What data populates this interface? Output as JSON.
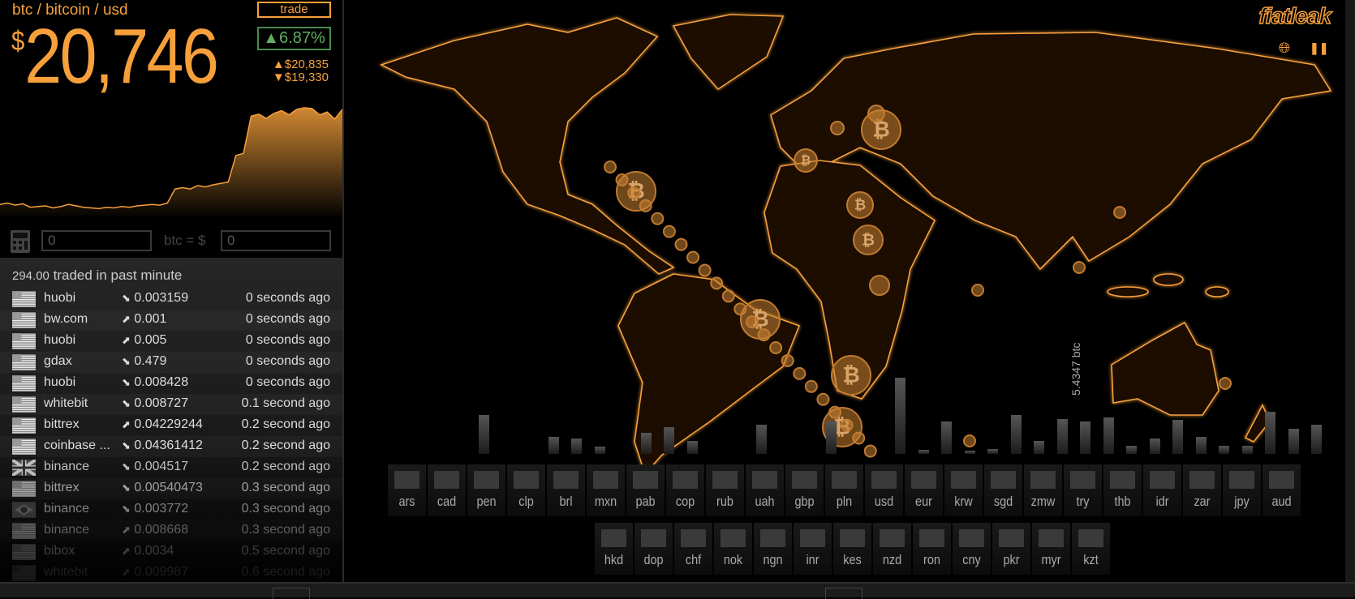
{
  "header": {
    "pair": "btc / bitcoin / usd",
    "currency_symbol": "$",
    "price": "20,746",
    "trade_label": "trade",
    "change": "▲6.87%",
    "high": "▲$20,835",
    "low": "▼$19,330"
  },
  "colors": {
    "accent": "#f6a03c",
    "up": "#5fae62",
    "land": "#1a0f04"
  },
  "price_history": {
    "type": "area",
    "ylim": [
      19330,
      20835
    ],
    "values": [
      19420,
      19440,
      19410,
      19430,
      19380,
      19390,
      19400,
      19370,
      19390,
      19420,
      19400,
      19380,
      19370,
      19360,
      19380,
      19370,
      19390,
      19380,
      19400,
      19410,
      19420,
      19410,
      19440,
      19640,
      19660,
      19640,
      19690,
      19670,
      19700,
      19720,
      19740,
      20120,
      20150,
      20680,
      20710,
      20650,
      20720,
      20760,
      20700,
      20780,
      20800,
      20790,
      20700,
      20740,
      20640,
      20780
    ]
  },
  "converter": {
    "btc_value": "0",
    "equals_label": "btc = $",
    "usd_value": "0",
    "calculator_icon": "calculator-icon"
  },
  "trades": {
    "volume": "294.00",
    "volume_label": "traded in past minute",
    "rows": [
      {
        "flag": "us",
        "exchange": "huobi",
        "dir": "down",
        "amount": "0.003159",
        "ago": "0 seconds ago"
      },
      {
        "flag": "us",
        "exchange": "bw.com",
        "dir": "up",
        "amount": "0.001",
        "ago": "0 seconds ago"
      },
      {
        "flag": "us",
        "exchange": "huobi",
        "dir": "up",
        "amount": "0.005",
        "ago": "0 seconds ago"
      },
      {
        "flag": "us",
        "exchange": "gdax",
        "dir": "down",
        "amount": "0.479",
        "ago": "0 seconds ago"
      },
      {
        "flag": "us",
        "exchange": "huobi",
        "dir": "down",
        "amount": "0.008428",
        "ago": "0 seconds ago"
      },
      {
        "flag": "us",
        "exchange": "whitebit",
        "dir": "down",
        "amount": "0.008727",
        "ago": "0.1 second ago"
      },
      {
        "flag": "us",
        "exchange": "bittrex",
        "dir": "up",
        "amount": "0.04229244",
        "ago": "0.2 second ago"
      },
      {
        "flag": "us",
        "exchange": "coinbase ...",
        "dir": "down",
        "amount": "0.04361412",
        "ago": "0.2 second ago"
      },
      {
        "flag": "gb",
        "exchange": "binance",
        "dir": "down",
        "amount": "0.004517",
        "ago": "0.2 second ago"
      },
      {
        "flag": "us",
        "exchange": "bittrex",
        "dir": "down",
        "amount": "0.00540473",
        "ago": "0.3 second ago"
      },
      {
        "flag": "br",
        "exchange": "binance",
        "dir": "down",
        "amount": "0.003772",
        "ago": "0.3 second ago"
      },
      {
        "flag": "us",
        "exchange": "binance",
        "dir": "up",
        "amount": "0.008668",
        "ago": "0.3 second ago"
      },
      {
        "flag": "us",
        "exchange": "bibox",
        "dir": "up",
        "amount": "0.0034",
        "ago": "0.5 second ago"
      },
      {
        "flag": "us",
        "exchange": "whitebit",
        "dir": "up",
        "amount": "0.009987",
        "ago": "0.6 second ago"
      }
    ]
  },
  "brand": {
    "logo": "fiatleak",
    "globe_icon": "globe-icon",
    "pause_icon": "pause-icon"
  },
  "volume_bars": {
    "max_label": "5.4347 btc",
    "values": [
      2.8,
      0,
      0,
      1.2,
      1.1,
      0.5,
      0,
      1.5,
      1.9,
      0.9,
      0,
      0,
      2.1,
      0,
      0,
      2.3,
      0,
      0,
      5.43,
      0.3,
      2.3,
      0.25,
      0.35,
      2.8,
      0.9,
      2.5,
      2.3,
      2.6,
      0.6,
      1.1,
      2.4,
      1.2,
      0.6,
      0.6,
      3.0,
      1.8,
      2.1
    ]
  },
  "currencies": {
    "row1": [
      "ars",
      "cad",
      "pen",
      "clp",
      "brl",
      "mxn",
      "pab",
      "cop",
      "rub",
      "uah",
      "gbp",
      "pln",
      "usd",
      "eur",
      "krw",
      "sgd",
      "zmw",
      "try",
      "thb",
      "idr",
      "zar",
      "jpy",
      "aud"
    ],
    "row2": [
      "hkd",
      "dop",
      "chf",
      "nok",
      "ngn",
      "inr",
      "kes",
      "nzd",
      "ron",
      "cny",
      "pkr",
      "myr",
      "kzt"
    ]
  }
}
